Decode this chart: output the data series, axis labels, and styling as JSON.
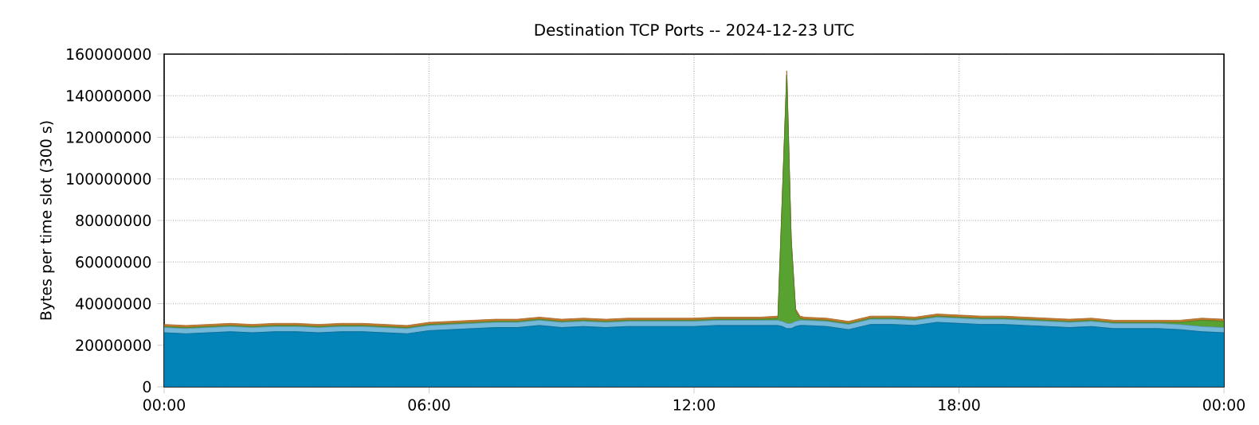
{
  "chart_data": {
    "type": "area",
    "stacked": true,
    "title": "Destination TCP Ports -- 2024-12-23 UTC",
    "ylabel": "Bytes per time slot (300 s)",
    "x": [
      0,
      0.5,
      1,
      1.5,
      2,
      2.5,
      3,
      3.5,
      4,
      4.5,
      5,
      5.5,
      6,
      6.5,
      7,
      7.5,
      8,
      8.5,
      9,
      9.5,
      10,
      10.5,
      11,
      11.5,
      12,
      12.5,
      13,
      13.5,
      13.9,
      14.0,
      14.1,
      14.2,
      14.3,
      14.4,
      14.5,
      15,
      15.5,
      16,
      16.5,
      17,
      17.5,
      18,
      18.5,
      19,
      19.5,
      20,
      20.5,
      21,
      21.5,
      22,
      22.5,
      23,
      23.5,
      24
    ],
    "series": [
      {
        "color": "#0284b8",
        "values": [
          26000000,
          25500000,
          26000000,
          26500000,
          26000000,
          26500000,
          26500000,
          26000000,
          26500000,
          26500000,
          26000000,
          25500000,
          27000000,
          27500000,
          28000000,
          28500000,
          28500000,
          29500000,
          28500000,
          29000000,
          28500000,
          29000000,
          29000000,
          29000000,
          29000000,
          29500000,
          29500000,
          29500000,
          29500000,
          29000000,
          28000000,
          28000000,
          29000000,
          29500000,
          29500000,
          29000000,
          27500000,
          30000000,
          30000000,
          29500000,
          31000000,
          30500000,
          30000000,
          30000000,
          29500000,
          29000000,
          28500000,
          29000000,
          28000000,
          28000000,
          28000000,
          27500000,
          26500000,
          26000000
        ]
      },
      {
        "color": "#74b8da",
        "values": [
          2500000,
          2500000,
          2500000,
          2500000,
          2500000,
          2500000,
          2500000,
          2500000,
          2500000,
          2500000,
          2500000,
          2500000,
          2500000,
          2500000,
          2500000,
          2500000,
          2500000,
          2500000,
          2500000,
          2500000,
          2500000,
          2500000,
          2500000,
          2500000,
          2500000,
          2500000,
          2500000,
          2500000,
          2500000,
          2500000,
          2500000,
          2500000,
          2500000,
          2500000,
          2500000,
          2500000,
          2500000,
          2500000,
          2500000,
          2500000,
          2500000,
          2500000,
          2500000,
          2500000,
          2500000,
          2500000,
          2500000,
          2500000,
          2500000,
          2500000,
          2500000,
          2500000,
          2500000,
          2500000
        ]
      },
      {
        "color": "#58a232",
        "values": [
          500000,
          500000,
          500000,
          500000,
          500000,
          500000,
          500000,
          500000,
          500000,
          500000,
          500000,
          500000,
          500000,
          500000,
          500000,
          500000,
          500000,
          500000,
          500000,
          500000,
          500000,
          500000,
          500000,
          500000,
          500000,
          500000,
          500000,
          500000,
          1000000,
          60000000,
          119500000,
          40000000,
          5000000,
          1000000,
          500000,
          500000,
          500000,
          500000,
          500000,
          500000,
          500000,
          500000,
          500000,
          500000,
          500000,
          500000,
          500000,
          500000,
          500000,
          500000,
          500000,
          1000000,
          3000000,
          3000000
        ]
      },
      {
        "color": "#c87a2c",
        "values": [
          1000000,
          1000000,
          1000000,
          1000000,
          1000000,
          1000000,
          1000000,
          1000000,
          1000000,
          1000000,
          1000000,
          1000000,
          1000000,
          1000000,
          1000000,
          1000000,
          1000000,
          1000000,
          1000000,
          1000000,
          1000000,
          1000000,
          1000000,
          1000000,
          1000000,
          1000000,
          1000000,
          1000000,
          1000000,
          1000000,
          2000000,
          1000000,
          1000000,
          1000000,
          1000000,
          1000000,
          1000000,
          1000000,
          1000000,
          1000000,
          1000000,
          1000000,
          1000000,
          1000000,
          1000000,
          1000000,
          1000000,
          1000000,
          1000000,
          1000000,
          1000000,
          1000000,
          1000000,
          1000000
        ]
      }
    ],
    "xlim": [
      0,
      24
    ],
    "xticks": [
      {
        "value": 0,
        "label": "00:00"
      },
      {
        "value": 6,
        "label": "06:00"
      },
      {
        "value": 12,
        "label": "12:00"
      },
      {
        "value": 18,
        "label": "18:00"
      },
      {
        "value": 24,
        "label": "00:00"
      }
    ],
    "ylim": [
      0,
      160000000
    ],
    "yticks": [
      0,
      20000000,
      40000000,
      60000000,
      80000000,
      100000000,
      120000000,
      140000000,
      160000000
    ],
    "grid": true
  }
}
